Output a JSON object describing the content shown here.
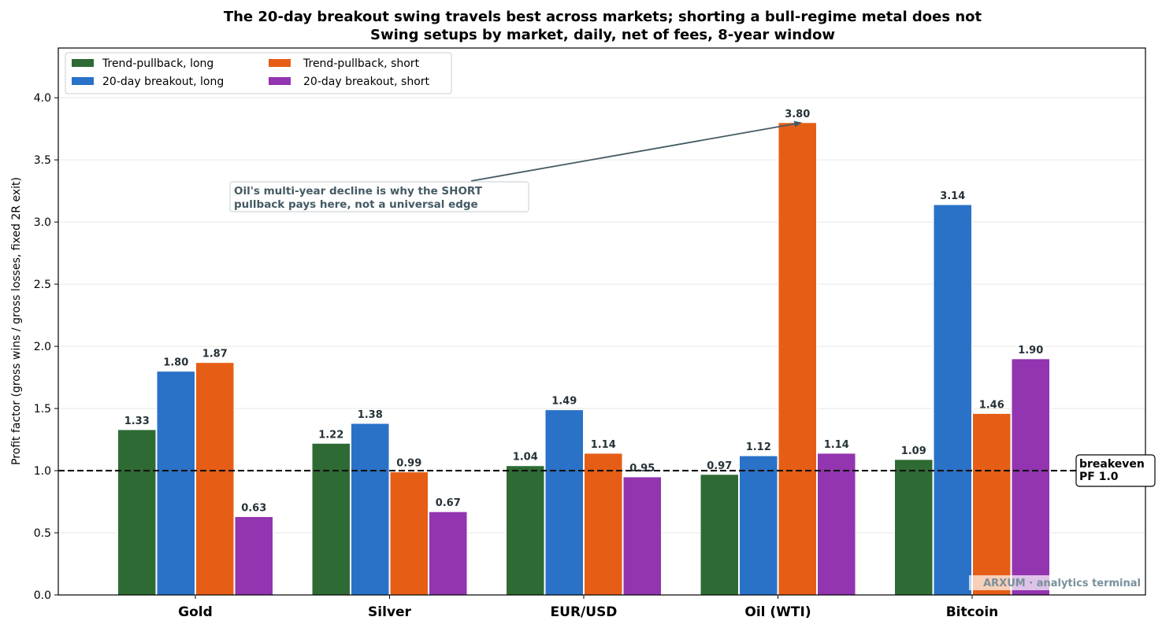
{
  "chart_data": {
    "type": "bar",
    "title": "The 20-day breakout swing travels best across markets; shorting a bull-regime metal does not",
    "subtitle": "Swing setups by market, daily, net of fees, 8-year window",
    "ylabel": "Profit factor (gross wins / gross losses, fixed 2R exit)",
    "xlabel": "",
    "ylim": [
      0,
      4.4
    ],
    "yticks": [
      "0.0",
      "0.5",
      "1.0",
      "1.5",
      "2.0",
      "2.5",
      "3.0",
      "3.5",
      "4.0"
    ],
    "ytick_values": [
      0,
      0.5,
      1.0,
      1.5,
      2.0,
      2.5,
      3.0,
      3.5,
      4.0
    ],
    "grid": true,
    "legend_placement": "top-left",
    "categories": [
      "Gold",
      "Silver",
      "EUR/USD",
      "Oil (WTI)",
      "Bitcoin"
    ],
    "series": [
      {
        "name": "Trend-pullback, long",
        "color": "#2e6b34",
        "values": [
          1.33,
          1.22,
          1.04,
          0.97,
          1.09
        ],
        "labels": [
          "1.33",
          "1.22",
          "1.04",
          "0.97",
          "1.09"
        ]
      },
      {
        "name": "20-day breakout, long",
        "color": "#2a72c8",
        "values": [
          1.8,
          1.38,
          1.49,
          1.12,
          3.14
        ],
        "labels": [
          "1.80",
          "1.38",
          "1.49",
          "1.12",
          "3.14"
        ]
      },
      {
        "name": "Trend-pullback, short",
        "color": "#e65e16",
        "values": [
          1.87,
          0.99,
          1.14,
          3.8,
          1.46
        ],
        "labels": [
          "1.87",
          "0.99",
          "1.14",
          "3.80",
          "1.46"
        ]
      },
      {
        "name": "20-day breakout, short",
        "color": "#9334b0",
        "values": [
          0.63,
          0.67,
          0.95,
          1.14,
          1.9
        ],
        "labels": [
          "0.63",
          "0.67",
          "0.95",
          "1.14",
          "1.90"
        ]
      }
    ],
    "reference_line": {
      "value": 1.0,
      "label_line1": "breakeven",
      "label_line2": "PF 1.0"
    },
    "annotation": {
      "line1": "Oil's multi-year decline is why the SHORT",
      "line2": "pullback pays here, not a universal edge",
      "target_category": "Oil (WTI)",
      "target_series": "Trend-pullback, short",
      "target_value": 3.8
    },
    "watermark": "ARXUM · analytics terminal"
  }
}
